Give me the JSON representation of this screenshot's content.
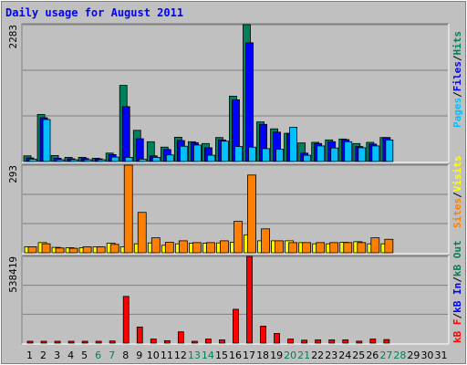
{
  "chart_data": [
    {
      "type": "bar",
      "title": "Daily usage for August 2011",
      "y_max_label": "2283",
      "y_max": 2283,
      "legend_position": "right",
      "grid": true,
      "categories": [
        "1",
        "2",
        "3",
        "4",
        "5",
        "6",
        "7",
        "8",
        "9",
        "10",
        "11",
        "12",
        "13",
        "14",
        "15",
        "16",
        "17",
        "18",
        "19",
        "20",
        "21",
        "22",
        "23",
        "24",
        "25",
        "26",
        "27",
        "28",
        "29",
        "30",
        "31"
      ],
      "weekend_days": [
        "6",
        "7",
        "13",
        "14",
        "20",
        "21",
        "27",
        "28"
      ],
      "legend": {
        "hits": "Hits",
        "files": "Files",
        "pages": "Pages",
        "sep1": "/",
        "sep2": "/"
      },
      "series": [
        {
          "name": "Hits",
          "color": "#00805c",
          "values": [
            95,
            785,
            100,
            70,
            70,
            55,
            140,
            1270,
            520,
            330,
            240,
            405,
            330,
            300,
            400,
            1090,
            2283,
            660,
            545,
            470,
            310,
            320,
            360,
            375,
            300,
            320,
            400,
            0,
            0,
            0,
            0
          ]
        },
        {
          "name": "Files",
          "color": "#0000ff",
          "values": [
            60,
            730,
            55,
            45,
            50,
            45,
            115,
            915,
            380,
            95,
            200,
            350,
            315,
            230,
            360,
            1030,
            1980,
            620,
            490,
            470,
            140,
            300,
            330,
            365,
            250,
            290,
            400,
            0,
            0,
            0,
            0
          ]
        },
        {
          "name": "Pages",
          "color": "#00c0ff",
          "values": [
            40,
            700,
            30,
            30,
            25,
            30,
            75,
            70,
            40,
            70,
            110,
            255,
            275,
            105,
            340,
            250,
            240,
            215,
            205,
            570,
            105,
            260,
            225,
            330,
            230,
            260,
            360,
            0,
            0,
            0,
            0
          ]
        }
      ]
    },
    {
      "type": "bar",
      "y_max_label": "293",
      "y_max": 293,
      "legend_position": "right",
      "grid": true,
      "legend": {
        "visits": "Visits",
        "sites": "Sites",
        "sep1": "/"
      },
      "series": [
        {
          "name": "Visits",
          "color": "#ffff00",
          "values": [
            20,
            34,
            18,
            17,
            17,
            20,
            32,
            20,
            30,
            33,
            25,
            30,
            32,
            32,
            33,
            35,
            60,
            40,
            40,
            40,
            34,
            30,
            30,
            35,
            37,
            30,
            30,
            0,
            0,
            0,
            0
          ]
        },
        {
          "name": "Sites",
          "color": "#ff8000",
          "values": [
            20,
            30,
            16,
            15,
            20,
            20,
            28,
            293,
            135,
            50,
            35,
            40,
            34,
            34,
            40,
            105,
            260,
            80,
            40,
            34,
            34,
            34,
            34,
            34,
            34,
            50,
            45,
            0,
            0,
            0,
            0
          ]
        }
      ]
    },
    {
      "type": "bar",
      "y_max_label": "538419",
      "y_max": 538419,
      "legend_position": "right",
      "grid": true,
      "legend": {
        "kbf": "kB F",
        "kbin": "kB In",
        "kbout": "kB Out",
        "sep1": "/",
        "sep2": "/"
      },
      "series": [
        {
          "name": "kB F",
          "color": "#ff0000",
          "values": [
            3000,
            3000,
            3000,
            3000,
            3000,
            3000,
            13000,
            290000,
            100000,
            25000,
            15000,
            70000,
            10000,
            25000,
            20000,
            210000,
            538419,
            105000,
            60000,
            25000,
            18000,
            20000,
            20000,
            20000,
            12000,
            25000,
            22000,
            0,
            0,
            0,
            0
          ]
        }
      ]
    }
  ]
}
